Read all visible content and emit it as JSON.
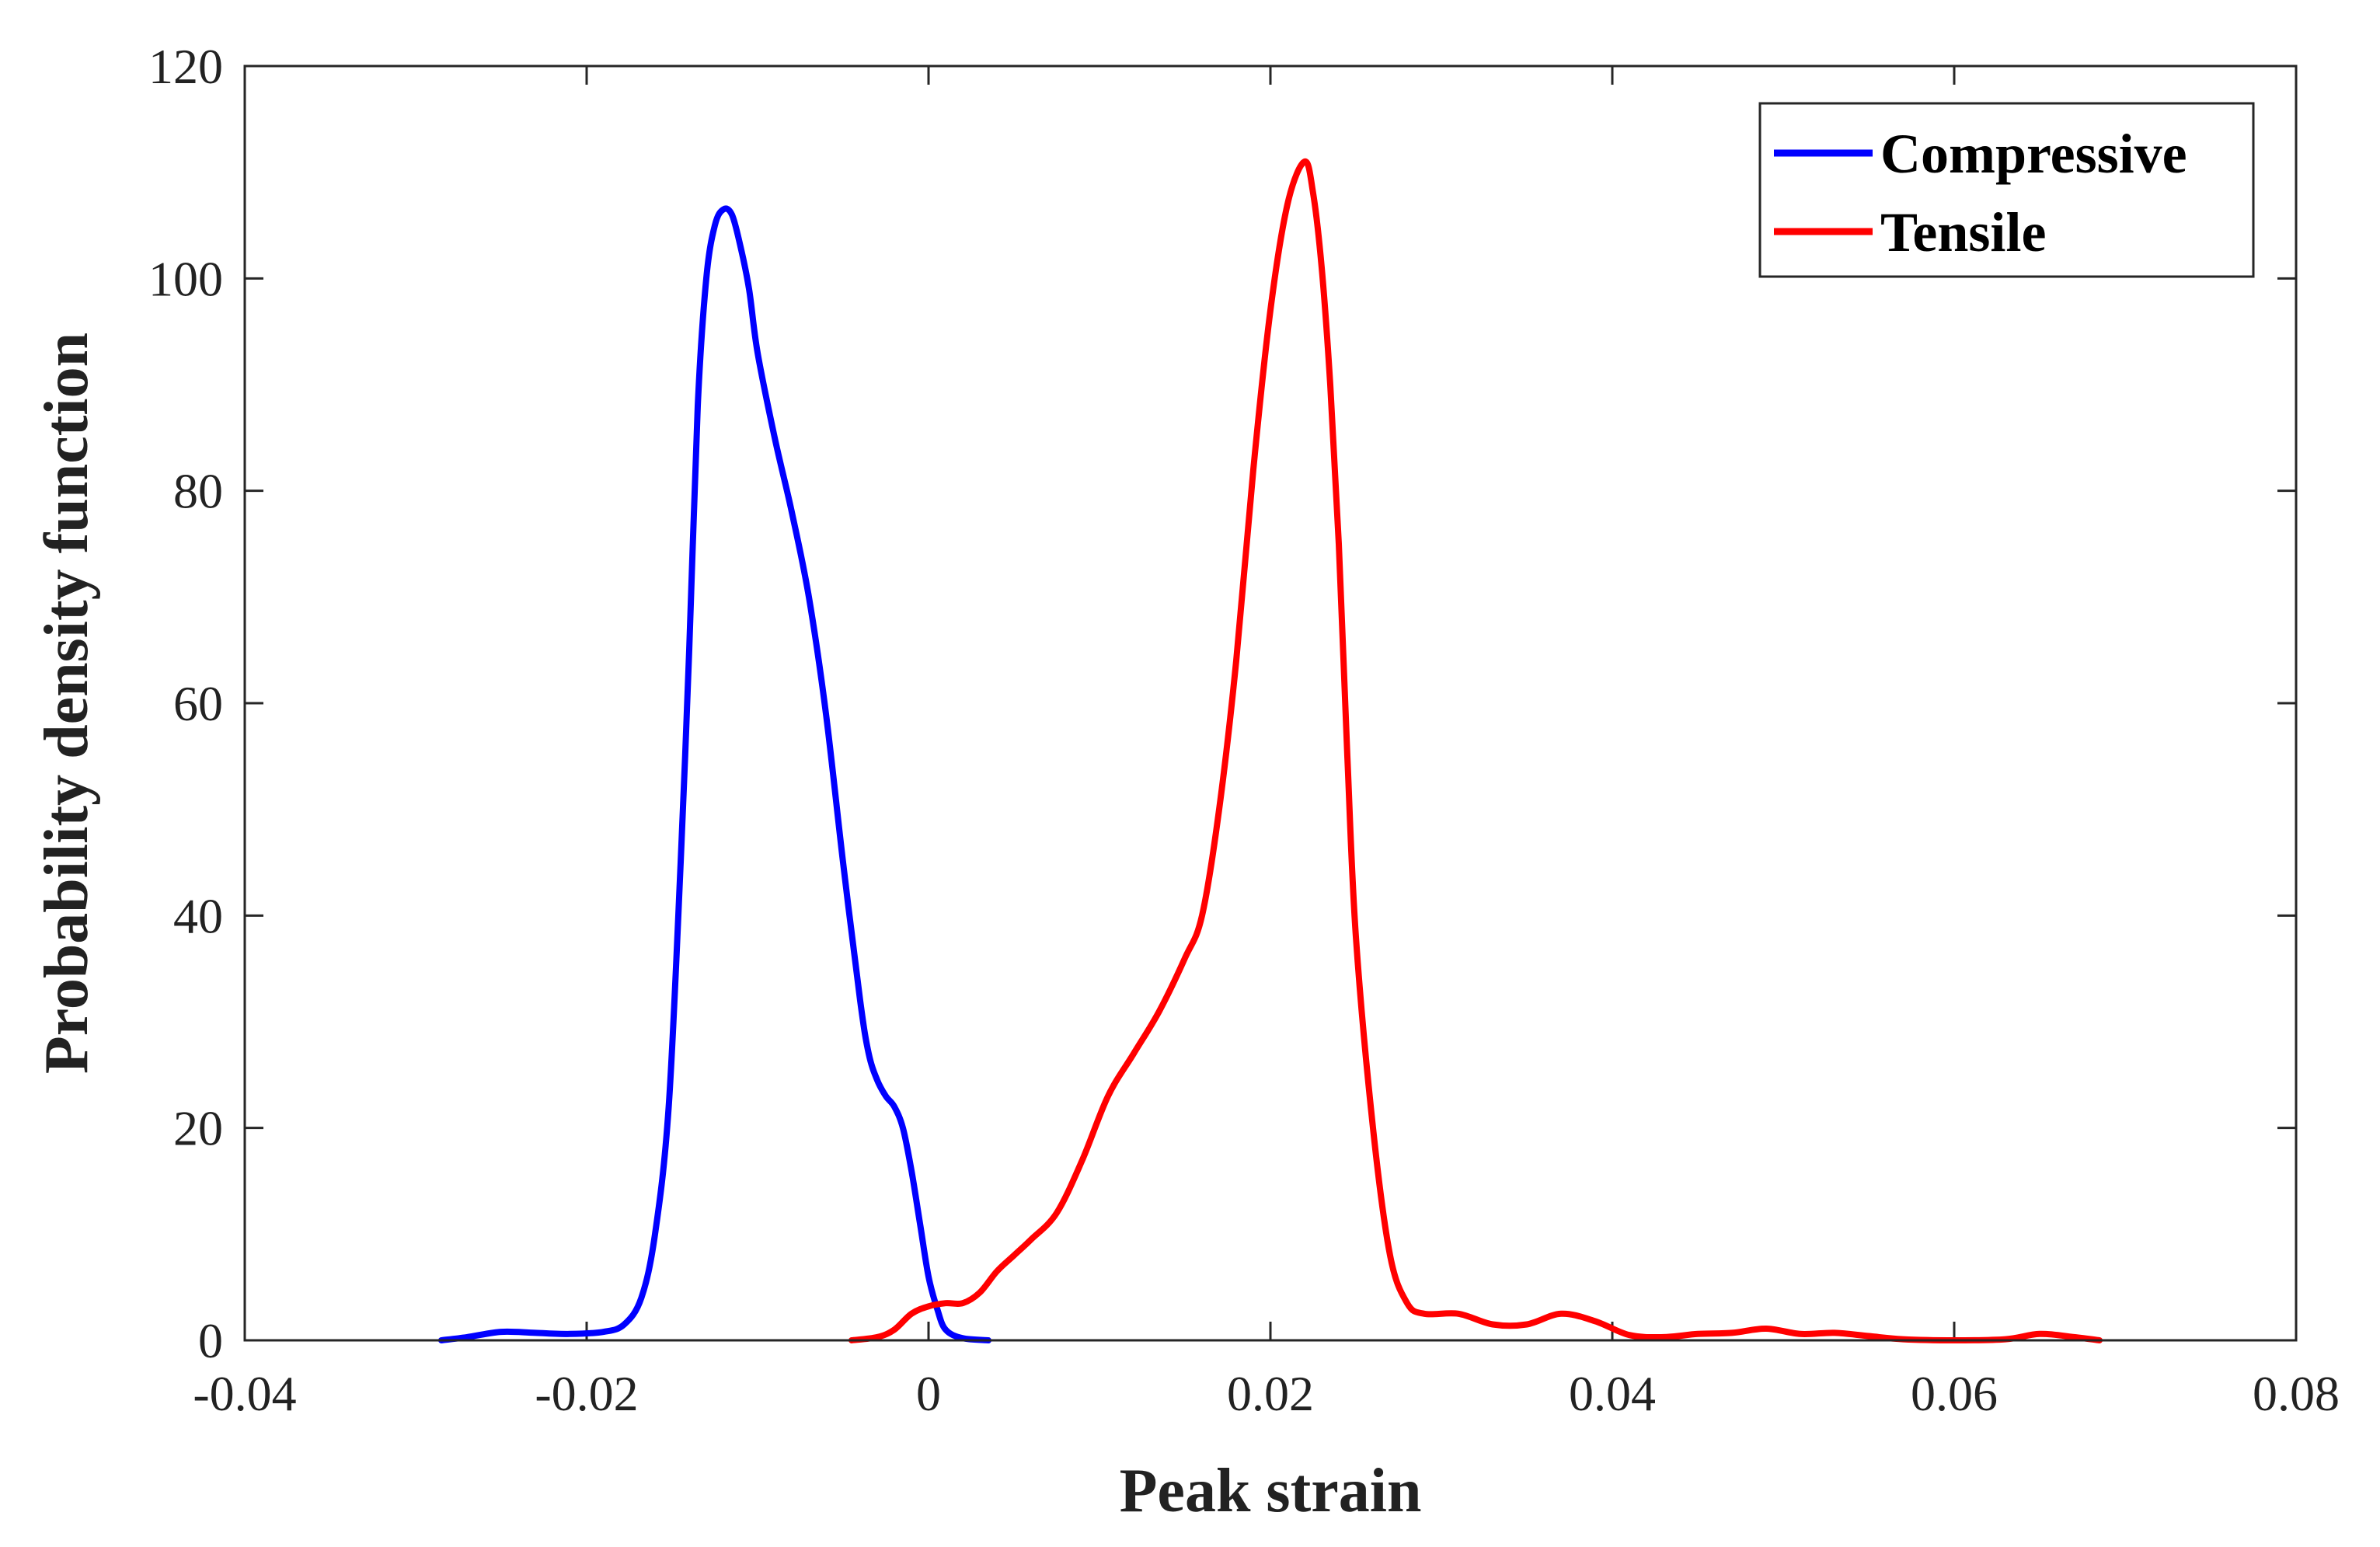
{
  "chart_data": {
    "type": "line",
    "title": "",
    "xlabel": "Peak strain",
    "ylabel": "Probability density function",
    "xlim": [
      -0.04,
      0.08
    ],
    "ylim": [
      0,
      120
    ],
    "xticks": [
      -0.04,
      -0.02,
      0,
      0.02,
      0.04,
      0.06,
      0.08
    ],
    "xtick_labels": [
      "-0.04",
      "-0.02",
      "0",
      "0.02",
      "0.04",
      "0.06",
      "0.08"
    ],
    "yticks": [
      0,
      20,
      40,
      60,
      80,
      100,
      120
    ],
    "ytick_labels": [
      "0",
      "20",
      "40",
      "60",
      "80",
      "100",
      "120"
    ],
    "grid": false,
    "legend_position": "top-right",
    "series": [
      {
        "name": "Compressive",
        "color": "#0000ff",
        "points": [
          [
            -0.0285,
            0
          ],
          [
            -0.027,
            0.3
          ],
          [
            -0.025,
            0.8
          ],
          [
            -0.023,
            0.7
          ],
          [
            -0.021,
            0.6
          ],
          [
            -0.019,
            0.8
          ],
          [
            -0.0178,
            1.5
          ],
          [
            -0.0168,
            4
          ],
          [
            -0.016,
            10
          ],
          [
            -0.0152,
            22
          ],
          [
            -0.0145,
            45
          ],
          [
            -0.014,
            65
          ],
          [
            -0.0135,
            88
          ],
          [
            -0.013,
            100
          ],
          [
            -0.0125,
            105
          ],
          [
            -0.012,
            106.5
          ],
          [
            -0.0115,
            106
          ],
          [
            -0.011,
            103
          ],
          [
            -0.0105,
            99
          ],
          [
            -0.01,
            93
          ],
          [
            -0.009,
            85
          ],
          [
            -0.008,
            78
          ],
          [
            -0.007,
            70
          ],
          [
            -0.006,
            59
          ],
          [
            -0.005,
            45
          ],
          [
            -0.004,
            32
          ],
          [
            -0.0035,
            27
          ],
          [
            -0.003,
            24.5
          ],
          [
            -0.0025,
            23
          ],
          [
            -0.002,
            22
          ],
          [
            -0.0015,
            20
          ],
          [
            -0.001,
            16
          ],
          [
            -0.0005,
            11
          ],
          [
            0,
            6
          ],
          [
            0.0005,
            3
          ],
          [
            0.001,
            1
          ],
          [
            0.002,
            0.2
          ],
          [
            0.0035,
            0
          ]
        ]
      },
      {
        "name": "Tensile",
        "color": "#ff0000",
        "points": [
          [
            -0.0045,
            0
          ],
          [
            -0.003,
            0.3
          ],
          [
            -0.002,
            1
          ],
          [
            -0.001,
            2.5
          ],
          [
            0,
            3.2
          ],
          [
            0.001,
            3.5
          ],
          [
            0.002,
            3.5
          ],
          [
            0.003,
            4.5
          ],
          [
            0.004,
            6.5
          ],
          [
            0.005,
            8
          ],
          [
            0.006,
            9.5
          ],
          [
            0.0075,
            12
          ],
          [
            0.009,
            17
          ],
          [
            0.0105,
            23
          ],
          [
            0.012,
            27
          ],
          [
            0.0135,
            31
          ],
          [
            0.015,
            36
          ],
          [
            0.016,
            40
          ],
          [
            0.017,
            50
          ],
          [
            0.018,
            64
          ],
          [
            0.019,
            82
          ],
          [
            0.02,
            97
          ],
          [
            0.021,
            107
          ],
          [
            0.022,
            111
          ],
          [
            0.0225,
            108
          ],
          [
            0.023,
            101
          ],
          [
            0.0235,
            90
          ],
          [
            0.024,
            75
          ],
          [
            0.0245,
            55
          ],
          [
            0.025,
            38
          ],
          [
            0.026,
            20
          ],
          [
            0.027,
            8
          ],
          [
            0.028,
            3.5
          ],
          [
            0.029,
            2.5
          ],
          [
            0.031,
            2.5
          ],
          [
            0.033,
            1.5
          ],
          [
            0.035,
            1.5
          ],
          [
            0.037,
            2.5
          ],
          [
            0.039,
            1.8
          ],
          [
            0.041,
            0.5
          ],
          [
            0.043,
            0.3
          ],
          [
            0.045,
            0.6
          ],
          [
            0.047,
            0.7
          ],
          [
            0.049,
            1.1
          ],
          [
            0.051,
            0.6
          ],
          [
            0.053,
            0.7
          ],
          [
            0.055,
            0.4
          ],
          [
            0.057,
            0.1
          ],
          [
            0.06,
            0
          ],
          [
            0.063,
            0.1
          ],
          [
            0.065,
            0.6
          ],
          [
            0.067,
            0.3
          ],
          [
            0.0685,
            0
          ]
        ]
      }
    ]
  }
}
